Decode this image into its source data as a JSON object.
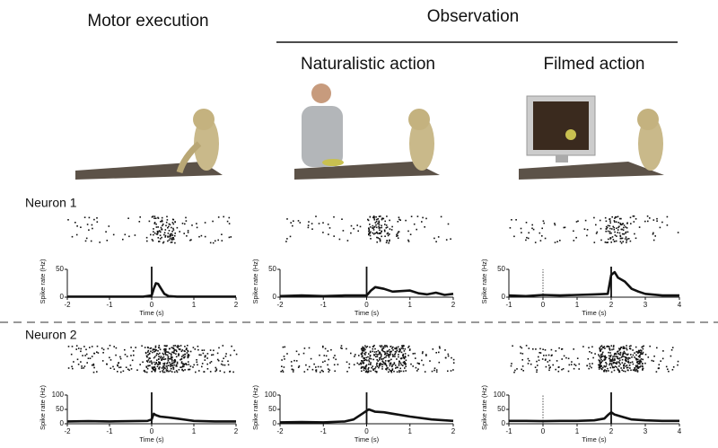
{
  "header": {
    "motor": "Motor execution",
    "observation": "Observation",
    "naturalistic": "Naturalistic action",
    "filmed": "Filmed action"
  },
  "rows": [
    {
      "label": "Neuron 1"
    },
    {
      "label": "Neuron 2"
    }
  ],
  "chart_data": [
    {
      "type": "line",
      "xlabel": "Time (s)",
      "ylabel": "Spike rate (Hz)",
      "color": "#111",
      "xlim": [
        -2,
        2
      ],
      "xticks": [
        -2,
        -1,
        0,
        1,
        2
      ],
      "ylim": [
        0,
        50
      ],
      "yticks": [
        0,
        50
      ],
      "events": [
        0
      ],
      "x": [
        -2,
        -1.5,
        -1,
        -0.5,
        -0.2,
        0,
        0.05,
        0.1,
        0.15,
        0.2,
        0.3,
        0.4,
        0.6,
        1,
        1.5,
        2
      ],
      "values": [
        1,
        1,
        1,
        1,
        1,
        3,
        15,
        25,
        24,
        18,
        6,
        2,
        1,
        1,
        1,
        1
      ]
    },
    {
      "type": "line",
      "xlabel": "Time (s)",
      "ylabel": "Spike rate (Hz)",
      "color": "#111",
      "xlim": [
        -2,
        2
      ],
      "xticks": [
        -2,
        -1,
        0,
        1,
        2
      ],
      "ylim": [
        0,
        50
      ],
      "yticks": [
        0,
        50
      ],
      "events": [
        0
      ],
      "x": [
        -2,
        -1.5,
        -1,
        -0.5,
        0,
        0.1,
        0.2,
        0.4,
        0.6,
        0.8,
        1,
        1.2,
        1.4,
        1.6,
        1.8,
        2
      ],
      "values": [
        2,
        3,
        2,
        3,
        3,
        12,
        18,
        15,
        10,
        11,
        12,
        7,
        5,
        8,
        4,
        6
      ]
    },
    {
      "type": "line",
      "xlabel": "Time (s)",
      "ylabel": "Spike rate (Hz)",
      "color": "#111",
      "xlim": [
        -1,
        4
      ],
      "xticks": [
        -1,
        0,
        1,
        2,
        3,
        4
      ],
      "ylim": [
        0,
        50
      ],
      "yticks": [
        0,
        50
      ],
      "events": [
        2
      ],
      "dotted_events": [
        0
      ],
      "x": [
        -1,
        -0.5,
        0,
        0.5,
        1,
        1.5,
        1.9,
        2,
        2.1,
        2.2,
        2.4,
        2.6,
        2.8,
        3,
        3.5,
        4
      ],
      "values": [
        3,
        2,
        4,
        3,
        4,
        5,
        6,
        40,
        45,
        35,
        28,
        15,
        10,
        6,
        3,
        3
      ]
    },
    {
      "type": "line",
      "xlabel": "Time (s)",
      "ylabel": "Spike rate (Hz)",
      "color": "#111",
      "xlim": [
        -2,
        2
      ],
      "xticks": [
        -2,
        -1,
        0,
        1,
        2
      ],
      "ylim": [
        0,
        100
      ],
      "yticks": [
        0,
        50,
        100
      ],
      "events": [
        0
      ],
      "x": [
        -2,
        -1.5,
        -1,
        -0.5,
        -0.1,
        0,
        0.05,
        0.1,
        0.2,
        0.4,
        0.6,
        0.8,
        1,
        1.5,
        2
      ],
      "values": [
        8,
        9,
        8,
        9,
        10,
        15,
        35,
        30,
        25,
        22,
        18,
        14,
        10,
        8,
        8
      ]
    },
    {
      "type": "line",
      "xlabel": "Time (s)",
      "ylabel": "Spike rate (Hz)",
      "color": "#111",
      "xlim": [
        -2,
        2
      ],
      "xticks": [
        -2,
        -1,
        0,
        1,
        2
      ],
      "ylim": [
        0,
        100
      ],
      "yticks": [
        0,
        50,
        100
      ],
      "events": [
        0
      ],
      "x": [
        -2,
        -1.5,
        -1,
        -0.5,
        -0.3,
        -0.1,
        0,
        0.05,
        0.2,
        0.4,
        0.6,
        0.8,
        1,
        1.5,
        2
      ],
      "values": [
        5,
        6,
        5,
        8,
        15,
        35,
        45,
        50,
        42,
        40,
        35,
        30,
        25,
        15,
        10
      ]
    },
    {
      "type": "line",
      "xlabel": "Time (s)",
      "ylabel": "Spike rate (Hz)",
      "color": "#111",
      "xlim": [
        -1,
        4
      ],
      "xticks": [
        -1,
        0,
        1,
        2,
        3,
        4
      ],
      "ylim": [
        0,
        100
      ],
      "yticks": [
        0,
        50,
        100
      ],
      "events": [
        2
      ],
      "dotted_events": [
        0
      ],
      "x": [
        -1,
        -0.5,
        0,
        0.5,
        1,
        1.5,
        1.8,
        1.9,
        2,
        2.1,
        2.3,
        2.6,
        3,
        3.5,
        4
      ],
      "values": [
        10,
        10,
        9,
        10,
        10,
        12,
        18,
        30,
        40,
        32,
        25,
        15,
        12,
        10,
        10
      ]
    }
  ]
}
